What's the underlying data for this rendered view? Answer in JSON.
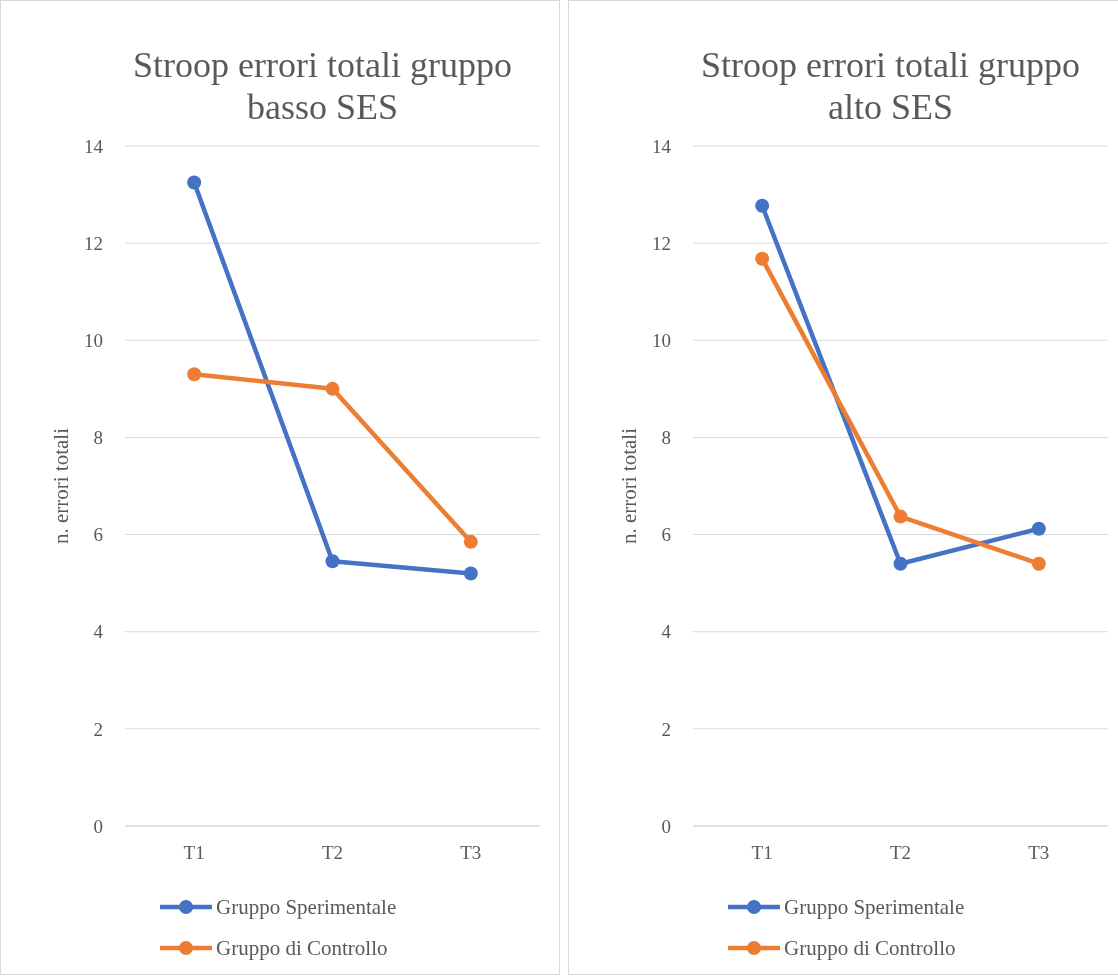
{
  "chart_data": [
    {
      "type": "line",
      "title": "Stroop errori totali gruppo basso SES",
      "ylabel": "n. errori totali",
      "categories": [
        "T1",
        "T2",
        "T3"
      ],
      "ylim": [
        0,
        14
      ],
      "yticks": [
        0,
        2,
        4,
        6,
        8,
        10,
        12,
        14
      ],
      "grid": "y",
      "legend": "bottom",
      "marker": "circle",
      "series": [
        {
          "name": "Gruppo Sperimentale",
          "color": "#4472c4",
          "values": [
            13.25,
            5.45,
            5.2
          ]
        },
        {
          "name": "Gruppo di Controllo",
          "color": "#ed7d31",
          "values": [
            9.3,
            9.0,
            5.85
          ]
        }
      ]
    },
    {
      "type": "line",
      "title": "Stroop errori totali gruppo alto SES",
      "ylabel": "n. errori totali",
      "categories": [
        "T1",
        "T2",
        "T3"
      ],
      "ylim": [
        0,
        14
      ],
      "yticks": [
        0,
        2,
        4,
        6,
        8,
        10,
        12,
        14
      ],
      "grid": "y",
      "legend": "bottom",
      "marker": "circle",
      "series": [
        {
          "name": "Gruppo Sperimentale",
          "color": "#4472c4",
          "values": [
            12.77,
            5.4,
            6.12
          ]
        },
        {
          "name": "Gruppo di Controllo",
          "color": "#ed7d31",
          "values": [
            11.68,
            6.37,
            5.4
          ]
        }
      ]
    }
  ]
}
